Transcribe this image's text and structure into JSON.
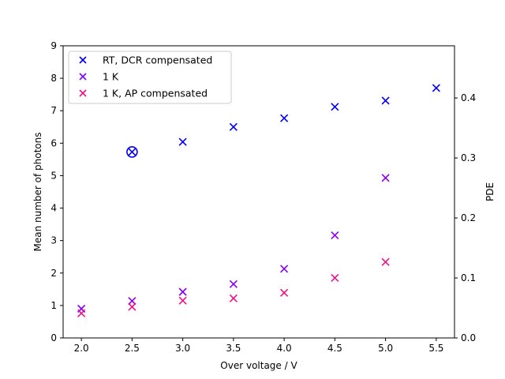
{
  "chart_data": {
    "type": "scatter",
    "xlabel": "Over voltage / V",
    "ylabel": "Mean number of photons",
    "y2label": "PDE",
    "xlim": [
      1.82,
      5.68
    ],
    "ylim": [
      0,
      9
    ],
    "y2lim": [
      0,
      0.487
    ],
    "xticks": [
      "2.0",
      "2.5",
      "3.0",
      "3.5",
      "4.0",
      "4.5",
      "5.0",
      "5.5"
    ],
    "yticks": [
      "0",
      "1",
      "2",
      "3",
      "4",
      "5",
      "6",
      "7",
      "8",
      "9"
    ],
    "y2ticks": [
      "0.0",
      "0.1",
      "0.2",
      "0.3",
      "0.4"
    ],
    "grid": false,
    "legend_position": "top-left",
    "series": [
      {
        "name": "RT, DCR compensated",
        "color": "#0000ee",
        "x": [
          2.5,
          3.0,
          3.5,
          4.0,
          4.5,
          5.0,
          5.5
        ],
        "y": [
          5.73,
          6.04,
          6.5,
          6.77,
          7.12,
          7.31,
          7.7
        ]
      },
      {
        "name": "1 K",
        "color": "#8800ee",
        "x": [
          2.0,
          2.5,
          3.0,
          3.5,
          4.0,
          4.5,
          5.0
        ],
        "y": [
          0.9,
          1.14,
          1.42,
          1.66,
          2.13,
          3.16,
          4.93
        ]
      },
      {
        "name": "1 K, AP compensated",
        "color": "#ee1188",
        "x": [
          2.0,
          2.5,
          3.0,
          3.5,
          4.0,
          4.5,
          5.0
        ],
        "y": [
          0.76,
          0.96,
          1.15,
          1.22,
          1.39,
          1.85,
          2.34
        ]
      }
    ],
    "highlight": {
      "x": 2.5,
      "y": 5.73,
      "series": "RT, DCR compensated",
      "marker": "circle"
    }
  }
}
